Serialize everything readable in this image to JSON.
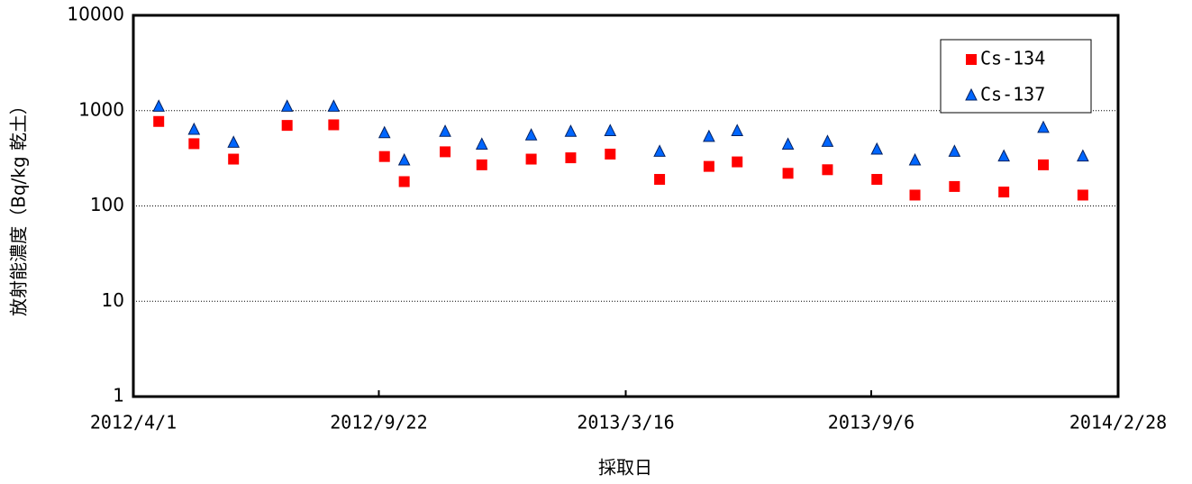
{
  "chart_data": {
    "type": "scatter",
    "x_label": "採取日",
    "y_label": "放射能濃度（Bq/kg 乾土）",
    "x": [
      "2012-04-19",
      "2012-05-14",
      "2012-06-11",
      "2012-07-19",
      "2012-08-21",
      "2012-09-26",
      "2012-10-10",
      "2012-11-08",
      "2012-12-04",
      "2013-01-08",
      "2013-02-05",
      "2013-03-05",
      "2013-04-09",
      "2013-05-14",
      "2013-06-03",
      "2013-07-09",
      "2013-08-06",
      "2013-09-10",
      "2013-10-07",
      "2013-11-04",
      "2013-12-09",
      "2014-01-06",
      "2014-02-03"
    ],
    "series": [
      {
        "name": "Cs-134",
        "color": "#ff0000",
        "marker": "square",
        "values": [
          770,
          450,
          310,
          700,
          710,
          330,
          180,
          370,
          270,
          310,
          320,
          350,
          190,
          260,
          290,
          220,
          240,
          190,
          130,
          160,
          140,
          270,
          130
        ]
      },
      {
        "name": "Cs-137",
        "color": "#0066ff",
        "marker": "triangle",
        "values": [
          1100,
          630,
          460,
          1100,
          1100,
          580,
          300,
          600,
          440,
          550,
          600,
          610,
          370,
          530,
          610,
          440,
          470,
          390,
          300,
          370,
          330,
          660,
          330
        ]
      }
    ],
    "xlim": [
      "2012-04-01",
      "2014-02-28"
    ],
    "xticks": [
      {
        "value": "2012-04-01",
        "label": "2012/4/1"
      },
      {
        "value": "2012-09-22",
        "label": "2012/9/22"
      },
      {
        "value": "2013-03-16",
        "label": "2013/3/16"
      },
      {
        "value": "2013-09-06",
        "label": "2013/9/6"
      },
      {
        "value": "2014-02-28",
        "label": "2014/2/28"
      }
    ],
    "ylim": [
      1,
      10000
    ],
    "yticks": [
      1,
      10,
      100,
      1000,
      10000
    ],
    "y_scale": "log",
    "grid": true,
    "legend": "top-right"
  }
}
